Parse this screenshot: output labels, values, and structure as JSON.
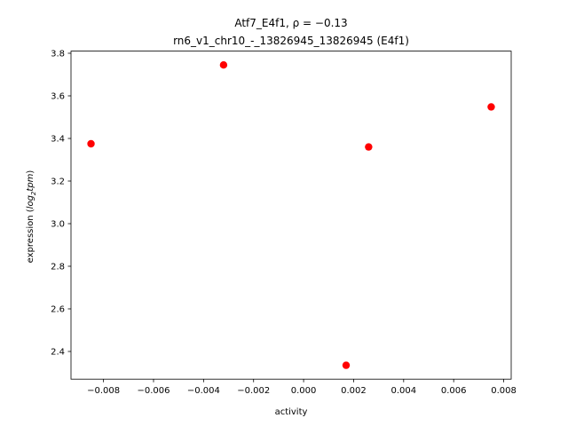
{
  "chart_data": {
    "type": "scatter",
    "title_line1": "Atf7_E4f1, ρ = −0.13",
    "title_line2": "rn6_v1_chr10_-_13826945_13826945 (E4f1)",
    "xlabel": "activity",
    "ylabel_prefix": "expression (",
    "ylabel_log": "log",
    "ylabel_sub": "2",
    "ylabel_tpm": "tpm",
    "ylabel_suffix": ")",
    "xlim": [
      -0.0093,
      0.0083
    ],
    "ylim": [
      2.27,
      3.81
    ],
    "x_ticks": [
      -0.008,
      -0.006,
      -0.004,
      -0.002,
      0.0,
      0.002,
      0.004,
      0.006,
      0.008
    ],
    "x_tick_labels": [
      "−0.008",
      "−0.006",
      "−0.004",
      "−0.002",
      "0.000",
      "0.002",
      "0.004",
      "0.006",
      "0.008"
    ],
    "y_ticks": [
      2.4,
      2.6,
      2.8,
      3.0,
      3.2,
      3.4,
      3.6,
      3.8
    ],
    "y_tick_labels": [
      "2.4",
      "2.6",
      "2.8",
      "3.0",
      "3.2",
      "3.4",
      "3.6",
      "3.8"
    ],
    "points": [
      {
        "x": -0.0085,
        "y": 3.375
      },
      {
        "x": -0.0032,
        "y": 3.745
      },
      {
        "x": 0.0017,
        "y": 2.335
      },
      {
        "x": 0.0026,
        "y": 3.36
      },
      {
        "x": 0.0075,
        "y": 3.548
      }
    ],
    "marker_color": "#ff0000",
    "grid": false
  }
}
